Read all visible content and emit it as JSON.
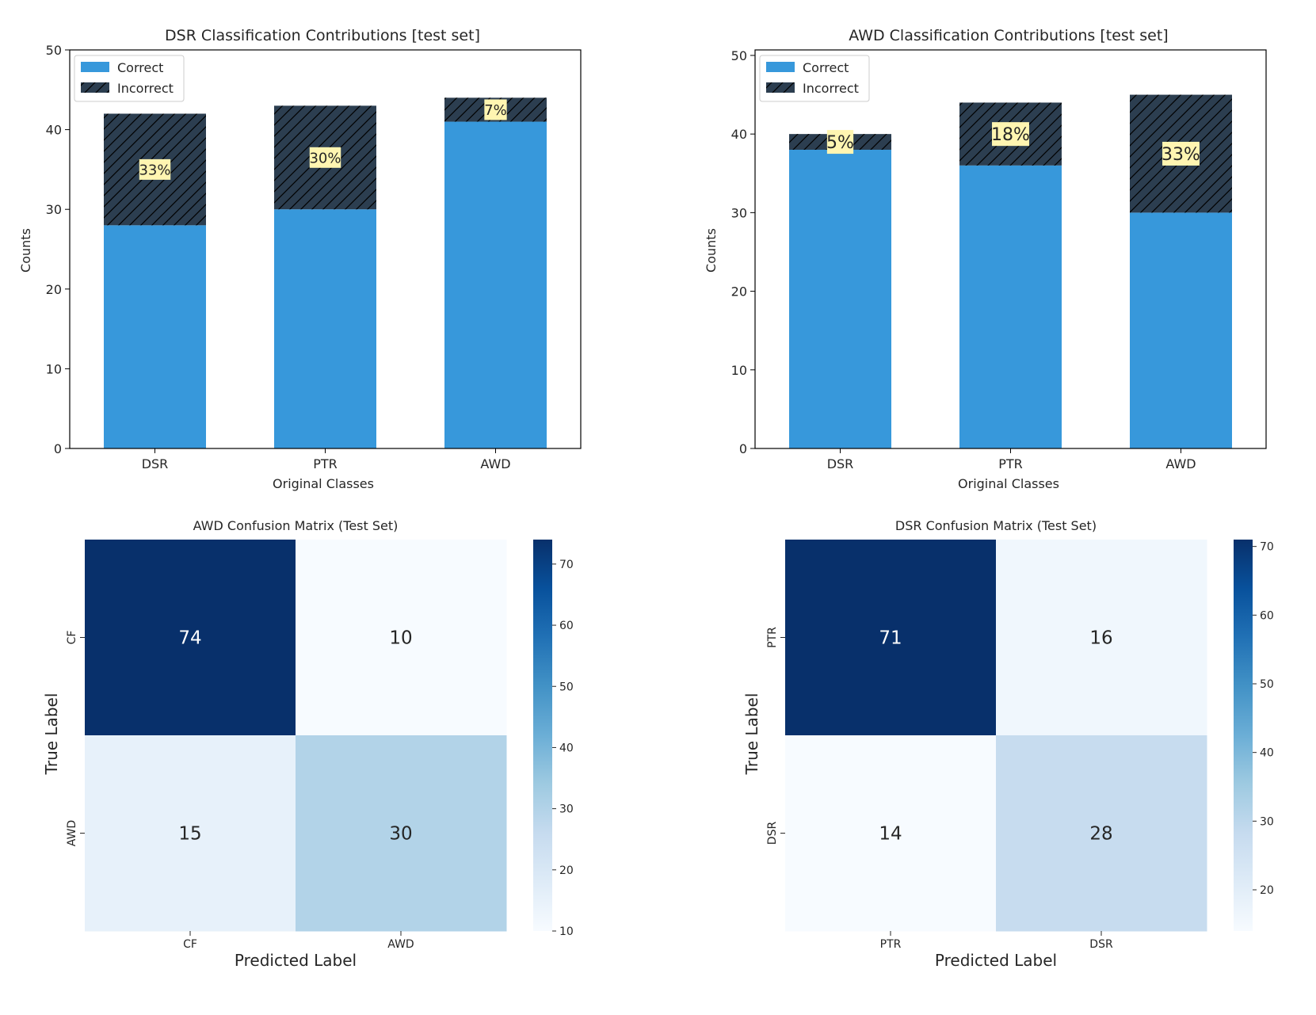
{
  "colors": {
    "correct": "#3798db",
    "incorrect": "#2c3e50",
    "hatch": "#000000",
    "label_bg": "#fff5b1",
    "text": "#262626",
    "annot_dark": "#ffffff",
    "annot_light": "#262626"
  },
  "chart_data": [
    {
      "type": "bar",
      "stacked": true,
      "title": "DSR Classification Contributions [test set]",
      "xlabel": "Original Classes",
      "ylabel": "Counts",
      "categories": [
        "DSR",
        "PTR",
        "AWD"
      ],
      "series": [
        {
          "name": "Correct",
          "values": [
            28,
            30,
            41
          ]
        },
        {
          "name": "Incorrect",
          "values": [
            14,
            13,
            3
          ]
        }
      ],
      "annotations": [
        "33%",
        "30%",
        "7%"
      ],
      "annotation_font": "small",
      "ylim": [
        0,
        50
      ],
      "yticks": [
        0,
        10,
        20,
        30,
        40,
        50
      ],
      "legend": {
        "position": "upper-left",
        "entries": [
          "Correct",
          "Incorrect"
        ]
      }
    },
    {
      "type": "bar",
      "stacked": true,
      "title": "AWD Classification Contributions [test set]",
      "xlabel": "Original Classes",
      "ylabel": "Counts",
      "categories": [
        "DSR",
        "PTR",
        "AWD"
      ],
      "series": [
        {
          "name": "Correct",
          "values": [
            38,
            36,
            30
          ]
        },
        {
          "name": "Incorrect",
          "values": [
            2,
            8,
            15
          ]
        }
      ],
      "annotations": [
        "5%",
        "18%",
        "33%"
      ],
      "annotation_font": "large",
      "ylim": [
        0,
        50.7
      ],
      "yticks": [
        0,
        10,
        20,
        30,
        40,
        50
      ],
      "legend": {
        "position": "upper-left",
        "entries": [
          "Correct",
          "Incorrect"
        ]
      }
    },
    {
      "type": "heatmap",
      "title": "AWD Confusion Matrix (Test Set)",
      "xlabel": "Predicted Label",
      "ylabel": "True Label",
      "x_categories": [
        "CF",
        "AWD"
      ],
      "y_categories": [
        "CF",
        "AWD"
      ],
      "values": [
        [
          74,
          10
        ],
        [
          15,
          30
        ]
      ],
      "colorbar": {
        "min": 10,
        "max": 74,
        "ticks": [
          10,
          20,
          30,
          40,
          50,
          60,
          70
        ]
      },
      "colormap": "Blues"
    },
    {
      "type": "heatmap",
      "title": "DSR Confusion Matrix (Test Set)",
      "xlabel": "Predicted Label",
      "ylabel": "True Label",
      "x_categories": [
        "PTR",
        "DSR"
      ],
      "y_categories": [
        "PTR",
        "DSR"
      ],
      "values": [
        [
          71,
          16
        ],
        [
          14,
          28
        ]
      ],
      "colorbar": {
        "min": 14,
        "max": 71,
        "ticks": [
          20,
          30,
          40,
          50,
          60,
          70
        ]
      },
      "colormap": "Blues"
    }
  ]
}
